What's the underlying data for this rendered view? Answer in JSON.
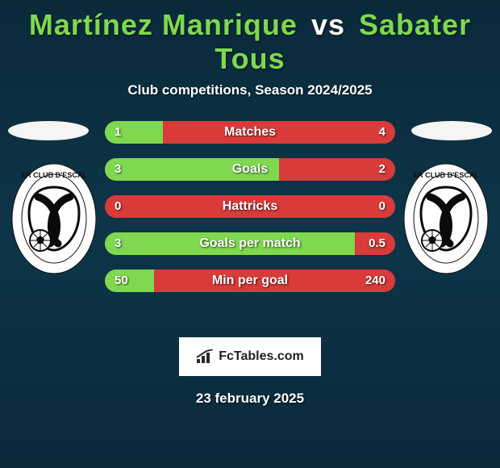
{
  "title": {
    "player1": "Martínez Manrique",
    "vs": "vs",
    "player2": "Sabater Tous",
    "color_p1": "#7fd84f",
    "color_vs": "#ffffff",
    "color_p2": "#7fd84f"
  },
  "subtitle": "Club competitions, Season 2024/2025",
  "date": "23 february 2025",
  "brand": {
    "text": "FcTables.com",
    "box_bg": "#ffffff",
    "icon_color": "#2a2a2a"
  },
  "colors": {
    "left_bar": "#7fd84f",
    "right_bar": "#d93a3a",
    "bar_track": "#8a4a4a",
    "text": "#ffffff",
    "flag_bg": "#f5f5f5"
  },
  "crest": {
    "outer_text": "CLUB D'ESCAL…",
    "inner_stroke": "#0a0a0a",
    "inner_fill": "#ffffff"
  },
  "stats": [
    {
      "label": "Matches",
      "left_val": "1",
      "right_val": "4",
      "left_pct": 20,
      "right_pct": 80
    },
    {
      "label": "Goals",
      "left_val": "3",
      "right_val": "2",
      "left_pct": 60,
      "right_pct": 40
    },
    {
      "label": "Hattricks",
      "left_val": "0",
      "right_val": "0",
      "left_pct": 0,
      "right_pct": 100
    },
    {
      "label": "Goals per match",
      "left_val": "3",
      "right_val": "0.5",
      "left_pct": 86,
      "right_pct": 14
    },
    {
      "label": "Min per goal",
      "left_val": "50",
      "right_val": "240",
      "left_pct": 17,
      "right_pct": 83
    }
  ]
}
